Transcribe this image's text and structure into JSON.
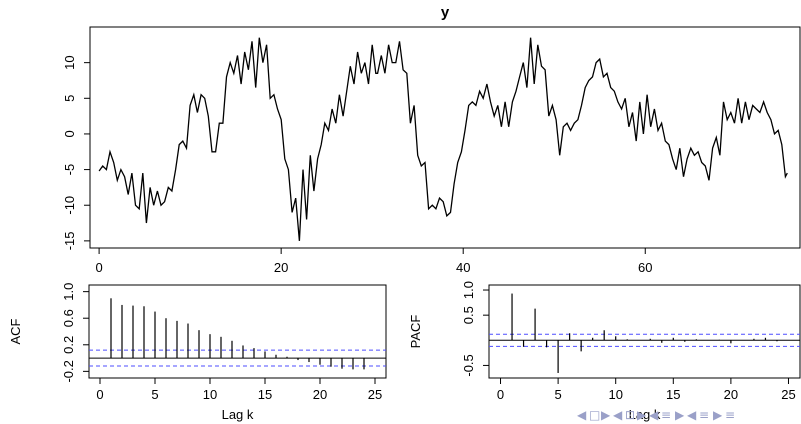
{
  "chart_data": [
    {
      "type": "line",
      "title": "y",
      "xlabel": "",
      "ylabel": "",
      "xlim": [
        -1,
        77
      ],
      "ylim": [
        -16,
        15
      ],
      "xticks": [
        0,
        20,
        40,
        60
      ],
      "yticks": [
        -15,
        -10,
        -5,
        0,
        5,
        10
      ],
      "xtick_labels": [
        "0",
        "20",
        "40",
        "60"
      ],
      "ytick_labels": [
        "-15",
        "-10",
        "-5",
        "0",
        "5",
        "10"
      ],
      "series": [
        {
          "values": [
            [
              0,
              -5.2
            ],
            [
              0.4,
              -4.5
            ],
            [
              0.8,
              -5.0
            ],
            [
              1.2,
              -2.5
            ],
            [
              1.6,
              -4.0
            ],
            [
              2.0,
              -6.5
            ],
            [
              2.4,
              -5.0
            ],
            [
              2.8,
              -6.0
            ],
            [
              3.2,
              -8.5
            ],
            [
              3.6,
              -5.5
            ],
            [
              4.0,
              -10.0
            ],
            [
              4.4,
              -10.5
            ],
            [
              4.8,
              -5.5
            ],
            [
              5.2,
              -12.5
            ],
            [
              5.6,
              -7.5
            ],
            [
              6.0,
              -10.0
            ],
            [
              6.4,
              -8.0
            ],
            [
              6.8,
              -10.0
            ],
            [
              7.2,
              -9.5
            ],
            [
              7.6,
              -7.5
            ],
            [
              8.0,
              -8.0
            ],
            [
              8.4,
              -5.0
            ],
            [
              8.8,
              -1.5
            ],
            [
              9.2,
              -1.0
            ],
            [
              9.6,
              -2.0
            ],
            [
              10.0,
              4.0
            ],
            [
              10.4,
              5.5
            ],
            [
              10.8,
              3.0
            ],
            [
              11.2,
              5.5
            ],
            [
              11.6,
              5.0
            ],
            [
              12.0,
              2.5
            ],
            [
              12.4,
              -2.5
            ],
            [
              12.8,
              -2.5
            ],
            [
              13.2,
              1.5
            ],
            [
              13.6,
              1.5
            ],
            [
              14.0,
              8.0
            ],
            [
              14.4,
              10.0
            ],
            [
              14.8,
              8.5
            ],
            [
              15.2,
              11.0
            ],
            [
              15.6,
              7.0
            ],
            [
              16.0,
              11.5
            ],
            [
              16.4,
              9.0
            ],
            [
              16.8,
              13.0
            ],
            [
              17.2,
              6.5
            ],
            [
              17.6,
              13.5
            ],
            [
              18.0,
              10.0
            ],
            [
              18.4,
              12.5
            ],
            [
              18.8,
              5.0
            ],
            [
              19.2,
              5.5
            ],
            [
              19.6,
              3.5
            ],
            [
              20.0,
              2.0
            ],
            [
              20.4,
              -3.5
            ],
            [
              20.8,
              -5.0
            ],
            [
              21.2,
              -11.0
            ],
            [
              21.6,
              -9.0
            ],
            [
              22.0,
              -15.0
            ],
            [
              22.4,
              -5.0
            ],
            [
              22.8,
              -12.0
            ],
            [
              23.2,
              -3.0
            ],
            [
              23.6,
              -8.0
            ],
            [
              24.0,
              -3.5
            ],
            [
              24.4,
              -1.5
            ],
            [
              24.8,
              1.5
            ],
            [
              25.2,
              0.5
            ],
            [
              25.6,
              3.5
            ],
            [
              26.0,
              1.5
            ],
            [
              26.4,
              5.5
            ],
            [
              26.8,
              2.5
            ],
            [
              27.2,
              6.0
            ],
            [
              27.6,
              9.5
            ],
            [
              28.0,
              7.0
            ],
            [
              28.4,
              11.5
            ],
            [
              28.8,
              8.5
            ],
            [
              29.2,
              10.0
            ],
            [
              29.6,
              7.0
            ],
            [
              30.0,
              12.5
            ],
            [
              30.4,
              8.5
            ],
            [
              30.6,
              8.5
            ],
            [
              31.0,
              11.0
            ],
            [
              31.4,
              8.5
            ],
            [
              31.8,
              12.5
            ],
            [
              32.2,
              10.0
            ],
            [
              32.6,
              10.0
            ],
            [
              33.0,
              13.0
            ],
            [
              33.4,
              9.0
            ],
            [
              33.8,
              8.5
            ],
            [
              34.2,
              1.5
            ],
            [
              34.6,
              4.0
            ],
            [
              35.0,
              -3.0
            ],
            [
              35.4,
              -4.5
            ],
            [
              35.8,
              -4.0
            ],
            [
              36.2,
              -10.5
            ],
            [
              36.6,
              -10.0
            ],
            [
              37.0,
              -10.5
            ],
            [
              37.4,
              -9.0
            ],
            [
              37.8,
              -9.5
            ],
            [
              38.2,
              -11.5
            ],
            [
              38.6,
              -11.0
            ],
            [
              39.0,
              -7.0
            ],
            [
              39.4,
              -4.0
            ],
            [
              39.8,
              -2.5
            ],
            [
              40.2,
              0.5
            ],
            [
              40.6,
              4.0
            ],
            [
              41.0,
              4.5
            ],
            [
              41.4,
              4.0
            ],
            [
              41.8,
              6.0
            ],
            [
              42.2,
              5.0
            ],
            [
              42.6,
              7.0
            ],
            [
              43.0,
              4.5
            ],
            [
              43.4,
              2.5
            ],
            [
              43.8,
              4.0
            ],
            [
              44.2,
              1.0
            ],
            [
              44.6,
              4.5
            ],
            [
              45.0,
              1.0
            ],
            [
              45.4,
              4.5
            ],
            [
              45.8,
              6.0
            ],
            [
              46.2,
              8.0
            ],
            [
              46.6,
              10.0
            ],
            [
              47.0,
              6.5
            ],
            [
              47.4,
              13.5
            ],
            [
              47.8,
              7.0
            ],
            [
              48.2,
              12.5
            ],
            [
              48.6,
              9.5
            ],
            [
              49.0,
              9.0
            ],
            [
              49.4,
              2.5
            ],
            [
              49.8,
              4.0
            ],
            [
              50.2,
              2.0
            ],
            [
              50.6,
              -3.0
            ],
            [
              51.0,
              1.0
            ],
            [
              51.4,
              1.5
            ],
            [
              51.8,
              0.5
            ],
            [
              52.2,
              1.5
            ],
            [
              52.6,
              2.0
            ],
            [
              53.0,
              4.0
            ],
            [
              53.4,
              6.5
            ],
            [
              53.8,
              7.5
            ],
            [
              54.2,
              8.0
            ],
            [
              54.6,
              10.0
            ],
            [
              55.0,
              10.5
            ],
            [
              55.4,
              8.0
            ],
            [
              55.8,
              8.5
            ],
            [
              56.2,
              6.5
            ],
            [
              56.6,
              6.0
            ],
            [
              57.0,
              4.5
            ],
            [
              57.4,
              3.5
            ],
            [
              57.8,
              5.0
            ],
            [
              58.2,
              1.0
            ],
            [
              58.6,
              3.0
            ],
            [
              59.0,
              -1.0
            ],
            [
              59.4,
              4.5
            ],
            [
              59.8,
              0.0
            ],
            [
              60.2,
              5.5
            ],
            [
              60.6,
              1.0
            ],
            [
              61.0,
              3.5
            ],
            [
              61.4,
              0.5
            ],
            [
              61.8,
              1.5
            ],
            [
              62.2,
              -1.0
            ],
            [
              62.6,
              -1.5
            ],
            [
              63.0,
              -3.5
            ],
            [
              63.4,
              -5.0
            ],
            [
              63.8,
              -2.0
            ],
            [
              64.2,
              -6.0
            ],
            [
              64.6,
              -3.5
            ],
            [
              65.0,
              -2.0
            ],
            [
              65.4,
              -3.0
            ],
            [
              65.8,
              -2.5
            ],
            [
              66.2,
              -4.0
            ],
            [
              66.6,
              -4.5
            ],
            [
              67.0,
              -6.5
            ],
            [
              67.4,
              -2.0
            ],
            [
              67.8,
              -0.5
            ],
            [
              68.2,
              -3.0
            ],
            [
              68.6,
              4.5
            ],
            [
              69.0,
              2.0
            ],
            [
              69.4,
              3.0
            ],
            [
              69.8,
              1.5
            ],
            [
              70.2,
              5.0
            ],
            [
              70.6,
              1.5
            ],
            [
              71.0,
              4.5
            ],
            [
              71.4,
              2.0
            ],
            [
              71.8,
              4.0
            ],
            [
              72.2,
              3.5
            ],
            [
              72.6,
              3.0
            ],
            [
              73.0,
              4.5
            ],
            [
              73.4,
              3.0
            ],
            [
              73.8,
              2.0
            ],
            [
              74.2,
              0.0
            ],
            [
              74.6,
              0.5
            ],
            [
              75.0,
              -1.5
            ],
            [
              75.4,
              -6.0
            ],
            [
              75.6,
              -5.5
            ]
          ]
        }
      ],
      "grid": false
    },
    {
      "type": "bar",
      "title": "",
      "xlabel": "Lag k",
      "ylabel": "ACF",
      "xlim": [
        -1,
        26
      ],
      "ylim": [
        -0.3,
        1.1
      ],
      "xticks": [
        0,
        5,
        10,
        15,
        20,
        25
      ],
      "yticks": [
        -0.2,
        0.2,
        0.6,
        1.0
      ],
      "xtick_labels": [
        "0",
        "5",
        "10",
        "15",
        "20",
        "25"
      ],
      "ytick_labels": [
        "-0.2",
        "0.2",
        "0.6",
        "1.0"
      ],
      "lags": [
        1,
        2,
        3,
        4,
        5,
        6,
        7,
        8,
        9,
        10,
        11,
        12,
        13,
        14,
        15,
        16,
        17,
        18,
        19,
        20,
        21,
        22,
        23,
        24
      ],
      "values": [
        0.9,
        0.8,
        0.79,
        0.78,
        0.7,
        0.6,
        0.56,
        0.52,
        0.42,
        0.36,
        0.32,
        0.26,
        0.19,
        0.15,
        0.1,
        0.05,
        0.02,
        -0.03,
        -0.06,
        -0.1,
        -0.13,
        -0.16,
        -0.17,
        -0.17
      ],
      "confidence_band": [
        -0.12,
        0.12
      ]
    },
    {
      "type": "bar",
      "title": "",
      "xlabel": "Lag k",
      "ylabel": "PACF",
      "xlim": [
        -1,
        26
      ],
      "ylim": [
        -0.75,
        1.1
      ],
      "xticks": [
        0,
        5,
        10,
        15,
        20,
        25
      ],
      "yticks": [
        -0.5,
        0.5,
        1.0
      ],
      "xtick_labels": [
        "0",
        "5",
        "10",
        "15",
        "20",
        "25"
      ],
      "ytick_labels": [
        "-0.5",
        "0.5",
        "1.0"
      ],
      "lags": [
        1,
        2,
        3,
        4,
        5,
        6,
        7,
        8,
        9,
        10,
        11,
        12,
        13,
        14,
        15,
        16,
        17,
        18,
        19,
        20,
        21,
        22,
        23,
        24
      ],
      "values": [
        0.93,
        -0.13,
        0.63,
        -0.14,
        -0.65,
        0.14,
        -0.22,
        0.05,
        0.2,
        0.08,
        0.02,
        0.0,
        0.03,
        -0.05,
        0.05,
        -0.03,
        0.02,
        0.0,
        0.01,
        -0.06,
        0.0,
        0.03,
        0.05,
        -0.02
      ],
      "confidence_band": [
        -0.12,
        0.12
      ]
    }
  ],
  "nav": {
    "glyphs": [
      "◀",
      "□",
      "▶",
      "◀",
      "⊡",
      "▶",
      "◀",
      "≡",
      "▶",
      "◀",
      "≡",
      "▶",
      "≡"
    ],
    "color": "#9aa0c8"
  }
}
